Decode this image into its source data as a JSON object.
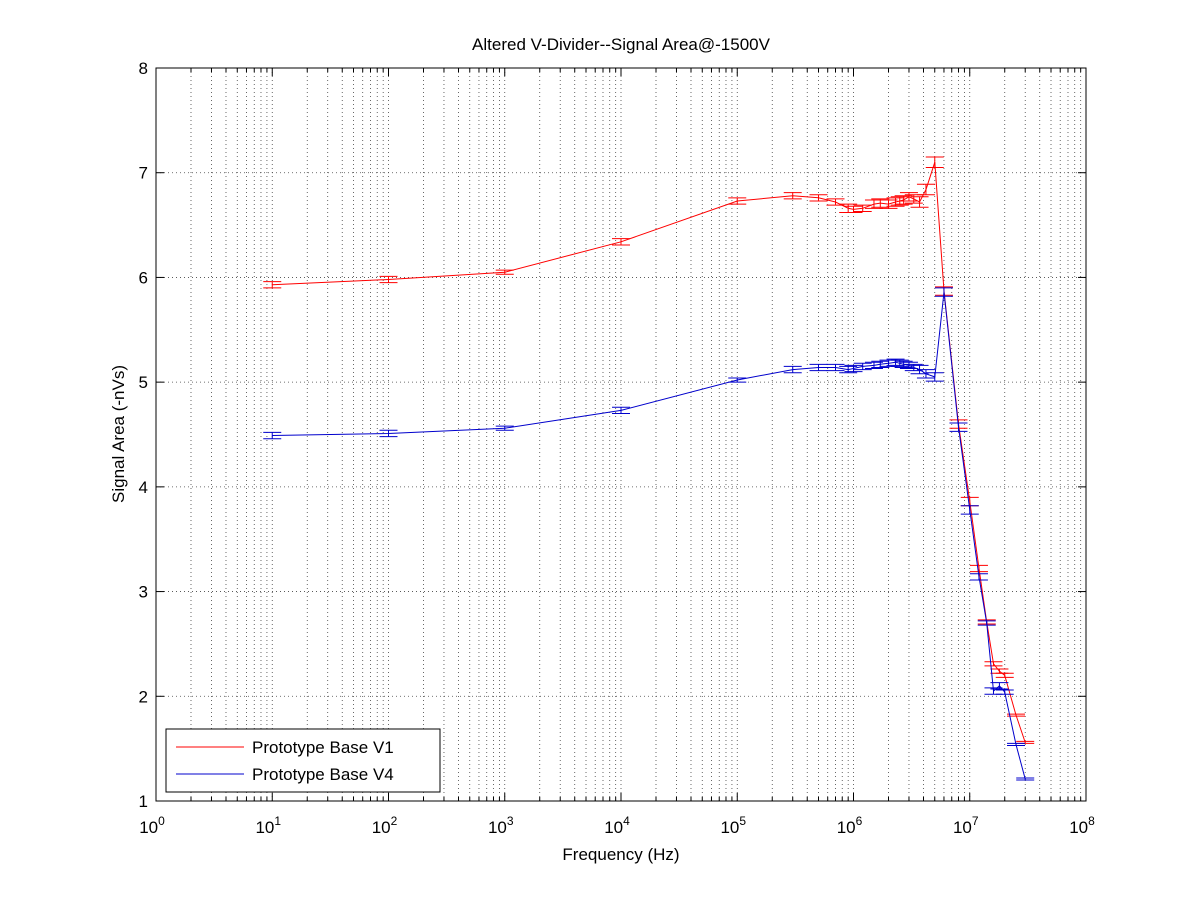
{
  "chart_data": {
    "type": "line",
    "title": "Altered V-Divider--Signal Area@-1500V",
    "xlabel": "Frequency (Hz)",
    "ylabel": "Signal Area (-nVs)",
    "x_scale": "log",
    "x_ticks": [
      {
        "base": "10",
        "exp": "0"
      },
      {
        "base": "10",
        "exp": "1"
      },
      {
        "base": "10",
        "exp": "2"
      },
      {
        "base": "10",
        "exp": "3"
      },
      {
        "base": "10",
        "exp": "4"
      },
      {
        "base": "10",
        "exp": "5"
      },
      {
        "base": "10",
        "exp": "6"
      },
      {
        "base": "10",
        "exp": "7"
      },
      {
        "base": "10",
        "exp": "8"
      }
    ],
    "xlim": [
      1,
      100000000
    ],
    "ylim": [
      1,
      8
    ],
    "y_ticks": [
      "1",
      "2",
      "3",
      "4",
      "5",
      "6",
      "7",
      "8"
    ],
    "grid": true,
    "legend_position": "bottom-left",
    "series": [
      {
        "name": "Prototype Base V1",
        "color": "#ff0000",
        "x": [
          10,
          100,
          1000,
          10000,
          100000,
          300000,
          500000,
          700000,
          900000,
          1000000,
          1200000,
          1500000,
          1700000,
          2000000,
          2300000,
          2500000,
          2700000,
          3000000,
          3300000,
          3700000,
          4200000,
          5000000,
          6000000,
          8000000,
          10000000,
          12000000,
          14000000,
          16000000,
          18000000,
          20000000,
          25000000,
          30000000
        ],
        "y": [
          5.93,
          5.98,
          6.05,
          6.34,
          6.73,
          6.78,
          6.76,
          6.72,
          6.66,
          6.65,
          6.66,
          6.7,
          6.71,
          6.7,
          6.72,
          6.73,
          6.74,
          6.77,
          6.75,
          6.72,
          6.84,
          7.1,
          5.87,
          4.6,
          3.86,
          3.22,
          2.71,
          2.31,
          2.24,
          2.2,
          1.82,
          1.56
        ],
        "err": [
          0.03,
          0.03,
          0.02,
          0.03,
          0.03,
          0.03,
          0.03,
          0.03,
          0.04,
          0.03,
          0.03,
          0.04,
          0.04,
          0.04,
          0.04,
          0.04,
          0.04,
          0.04,
          0.04,
          0.05,
          0.05,
          0.05,
          0.04,
          0.04,
          0.04,
          0.03,
          0.02,
          0.02,
          0.02,
          0.02,
          0.01,
          0.01
        ]
      },
      {
        "name": "Prototype Base V4",
        "color": "#0000cc",
        "x": [
          10,
          100,
          1000,
          10000,
          100000,
          300000,
          500000,
          700000,
          900000,
          1000000,
          1200000,
          1500000,
          1700000,
          2000000,
          2300000,
          2500000,
          2700000,
          3000000,
          3300000,
          3700000,
          4200000,
          5000000,
          6000000,
          8000000,
          10000000,
          12000000,
          14000000,
          16000000,
          18000000,
          20000000,
          25000000,
          30000000
        ],
        "y": [
          4.49,
          4.51,
          4.56,
          4.73,
          5.02,
          5.12,
          5.14,
          5.14,
          5.12,
          5.13,
          5.15,
          5.16,
          5.17,
          5.18,
          5.19,
          5.18,
          5.17,
          5.16,
          5.14,
          5.12,
          5.08,
          5.05,
          5.86,
          4.57,
          3.78,
          3.14,
          2.7,
          2.05,
          2.1,
          2.04,
          1.54,
          1.21
        ],
        "err": [
          0.03,
          0.03,
          0.02,
          0.03,
          0.02,
          0.03,
          0.03,
          0.03,
          0.03,
          0.03,
          0.03,
          0.03,
          0.03,
          0.03,
          0.03,
          0.03,
          0.03,
          0.03,
          0.03,
          0.04,
          0.04,
          0.04,
          0.04,
          0.04,
          0.04,
          0.03,
          0.02,
          0.03,
          0.03,
          0.02,
          0.01,
          0.01
        ]
      }
    ]
  }
}
